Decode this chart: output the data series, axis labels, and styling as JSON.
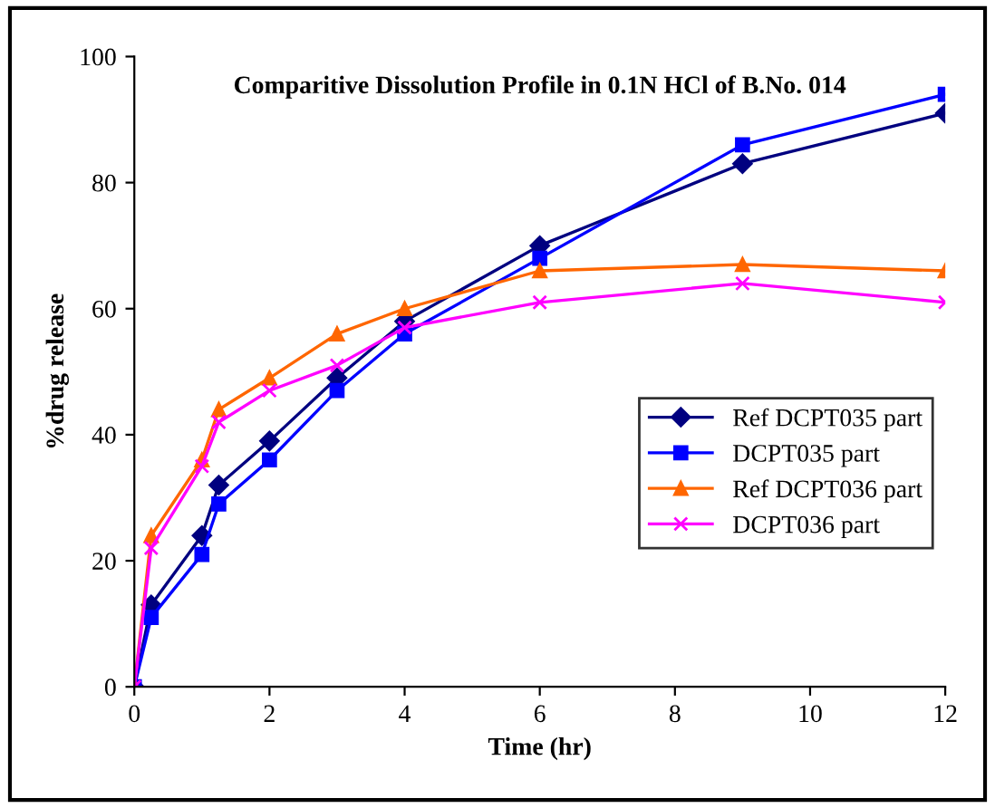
{
  "chart_data": {
    "type": "line",
    "title": "Comparitive Dissolution Profile in 0.1N HCl of B.No. 014",
    "xlabel": "Time (hr)",
    "ylabel": "%drug release",
    "x": [
      0,
      0.25,
      1,
      1.25,
      2,
      3,
      4,
      6,
      9,
      12
    ],
    "series": [
      {
        "name": "Ref DCPT035 part",
        "color": "#000080",
        "marker": "diamond",
        "values": [
          0,
          13,
          24,
          32,
          39,
          49,
          58,
          70,
          83,
          91
        ]
      },
      {
        "name": "DCPT035 part",
        "color": "#0000ff",
        "marker": "square",
        "values": [
          0,
          11,
          21,
          29,
          36,
          47,
          56,
          68,
          86,
          94
        ]
      },
      {
        "name": "Ref DCPT036 part",
        "color": "#ff6600",
        "marker": "triangle",
        "values": [
          0,
          24,
          36,
          44,
          49,
          56,
          60,
          66,
          67,
          66
        ]
      },
      {
        "name": "DCPT036 part",
        "color": "#ff00ff",
        "marker": "cross",
        "values": [
          0,
          22,
          35,
          42,
          47,
          51,
          57,
          61,
          64,
          61
        ]
      }
    ],
    "xlim": [
      0,
      12
    ],
    "xticks": [
      0,
      2,
      4,
      6,
      8,
      10,
      12
    ],
    "ylim": [
      0,
      100
    ],
    "yticks": [
      0,
      20,
      40,
      60,
      80,
      100
    ],
    "grid": false,
    "legend": "bottom right",
    "line_style": "solid"
  }
}
